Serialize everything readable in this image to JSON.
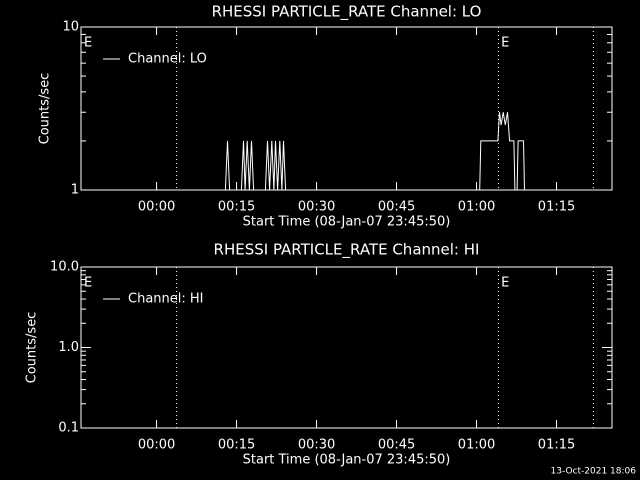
{
  "chart_data": [
    {
      "type": "line",
      "title": "RHESSI PARTICLE_RATE Channel: LO",
      "xlabel": "Start Time (08-Jan-07 23:45:50)",
      "ylabel": "Counts/sec",
      "log_y": true,
      "xlim": [
        -14.17,
        85.4
      ],
      "xticks": [
        {
          "value": 0,
          "label": "00:00"
        },
        {
          "value": 15,
          "label": "00:15"
        },
        {
          "value": 30,
          "label": "00:30"
        },
        {
          "value": 45,
          "label": "00:45"
        },
        {
          "value": 60,
          "label": "01:00"
        },
        {
          "value": 75,
          "label": "01:15"
        }
      ],
      "ylim": [
        1,
        10
      ],
      "yticks": [
        1,
        10
      ],
      "vlines": [
        3.75,
        64.1,
        81.9
      ],
      "annotations": [
        {
          "text": "E",
          "x": -13.6
        },
        {
          "text": "E",
          "x": 64.6
        }
      ],
      "series": [
        {
          "name": "Channel: LO",
          "color": "#ffffff",
          "x": [
            12.9,
            13.3,
            13.7,
            15.9,
            16.3,
            16.6,
            17.0,
            17.4,
            17.8,
            18.2,
            20.4,
            20.8,
            21.2,
            21.6,
            22.0,
            22.3,
            22.7,
            23.1,
            23.5,
            23.8,
            24.2,
            null,
            60.6,
            60.8,
            64.0,
            64.3,
            64.6,
            65.0,
            65.4,
            65.8,
            66.2,
            67.0,
            67.2,
            67.6,
            67.8,
            68.8,
            69.0
          ],
          "values": [
            1,
            2,
            1,
            1,
            2,
            1,
            2,
            1,
            2,
            1,
            1,
            2,
            1,
            2,
            1,
            2,
            1,
            2,
            1,
            2,
            1,
            null,
            1,
            2,
            2,
            3,
            2.5,
            3,
            2.5,
            3,
            2,
            2,
            1,
            1,
            2,
            2,
            1
          ]
        }
      ]
    },
    {
      "type": "line",
      "title": "RHESSI PARTICLE_RATE Channel: HI",
      "xlabel": "Start Time (08-Jan-07 23:45:50)",
      "ylabel": "Counts/sec",
      "log_y": true,
      "xlim": [
        -14.17,
        85.4
      ],
      "xticks": [
        {
          "value": 0,
          "label": "00:00"
        },
        {
          "value": 15,
          "label": "00:15"
        },
        {
          "value": 30,
          "label": "00:30"
        },
        {
          "value": 45,
          "label": "00:45"
        },
        {
          "value": 60,
          "label": "01:00"
        },
        {
          "value": 75,
          "label": "01:15"
        }
      ],
      "ylim": [
        0.1,
        10
      ],
      "yticks": [
        0.1,
        {
          "value": 1,
          "label": "1.0"
        },
        {
          "value": 10,
          "label": "10.0"
        }
      ],
      "vlines": [
        3.75,
        64.1,
        81.9
      ],
      "annotations": [
        {
          "text": "E",
          "x": -13.6
        },
        {
          "text": "E",
          "x": 64.6
        }
      ],
      "series": [
        {
          "name": "Channel: HI",
          "color": "#ffffff",
          "x": [
            84.2,
            85.4
          ],
          "values": [
            1,
            1
          ]
        }
      ]
    }
  ],
  "footer": "13-Oct-2021 18:06"
}
